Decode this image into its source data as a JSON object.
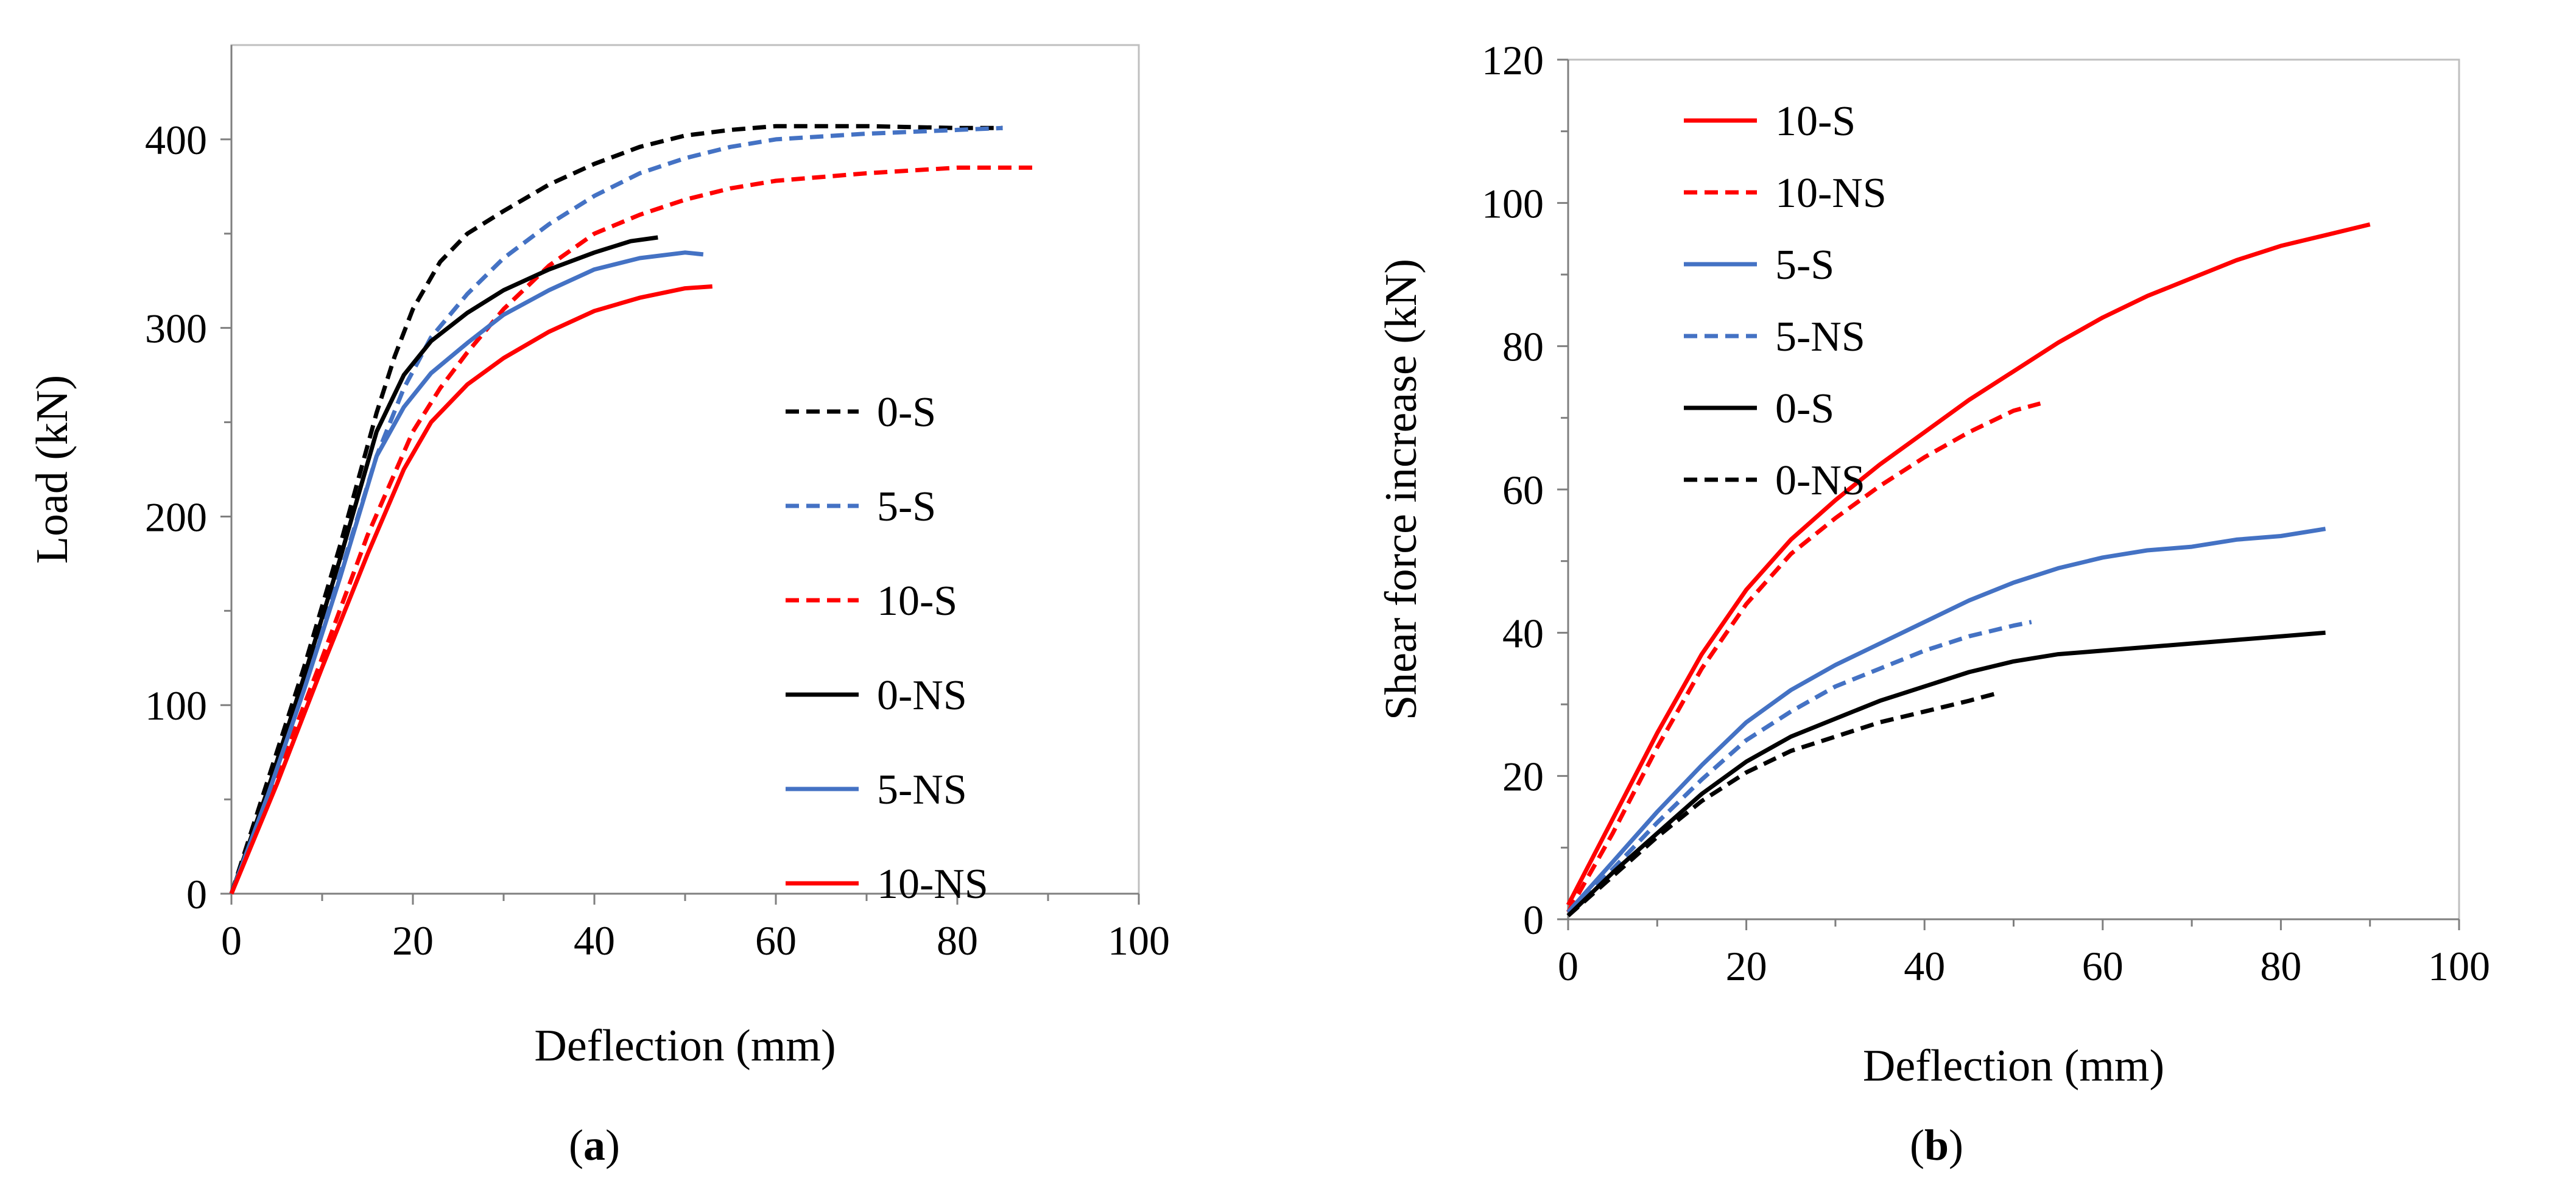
{
  "chart_data": [
    {
      "id": "a",
      "type": "line",
      "caption_letter": "a",
      "xlabel": "Deflection (mm)",
      "ylabel": "Load (kN)",
      "xlim": [
        0,
        100
      ],
      "ylim": [
        0,
        450
      ],
      "xticks": [
        0,
        20,
        40,
        60,
        80,
        100
      ],
      "yticks": [
        0,
        100,
        200,
        300,
        400
      ],
      "grid": false,
      "legend_position": "center-right",
      "series": [
        {
          "name": "0-S",
          "color": "#000000",
          "dash": true,
          "points": [
            [
              0,
              0
            ],
            [
              4,
              60
            ],
            [
              8,
              120
            ],
            [
              12,
              185
            ],
            [
              16,
              255
            ],
            [
              18,
              285
            ],
            [
              20,
              310
            ],
            [
              23,
              335
            ],
            [
              26,
              350
            ],
            [
              30,
              362
            ],
            [
              35,
              376
            ],
            [
              40,
              387
            ],
            [
              45,
              396
            ],
            [
              50,
              402
            ],
            [
              55,
              405
            ],
            [
              60,
              407
            ],
            [
              70,
              407
            ],
            [
              80,
              406
            ],
            [
              85,
              406
            ]
          ]
        },
        {
          "name": "5-S",
          "color": "#4472C4",
          "dash": true,
          "points": [
            [
              0,
              0
            ],
            [
              4,
              55
            ],
            [
              8,
              112
            ],
            [
              12,
              170
            ],
            [
              16,
              232
            ],
            [
              19,
              268
            ],
            [
              22,
              295
            ],
            [
              26,
              318
            ],
            [
              30,
              337
            ],
            [
              35,
              355
            ],
            [
              40,
              370
            ],
            [
              45,
              382
            ],
            [
              50,
              390
            ],
            [
              55,
              396
            ],
            [
              60,
              400
            ],
            [
              70,
              403
            ],
            [
              80,
              405
            ],
            [
              85,
              406
            ]
          ]
        },
        {
          "name": "10-S",
          "color": "#FF0000",
          "dash": true,
          "points": [
            [
              0,
              0
            ],
            [
              5,
              62
            ],
            [
              10,
              125
            ],
            [
              15,
              190
            ],
            [
              20,
              245
            ],
            [
              23,
              268
            ],
            [
              26,
              287
            ],
            [
              30,
              310
            ],
            [
              35,
              333
            ],
            [
              40,
              350
            ],
            [
              45,
              360
            ],
            [
              50,
              368
            ],
            [
              55,
              374
            ],
            [
              60,
              378
            ],
            [
              70,
              382
            ],
            [
              80,
              385
            ],
            [
              89,
              385
            ]
          ]
        },
        {
          "name": "0-NS",
          "color": "#000000",
          "dash": false,
          "points": [
            [
              0,
              0
            ],
            [
              4,
              55
            ],
            [
              8,
              115
            ],
            [
              12,
              178
            ],
            [
              16,
              245
            ],
            [
              19,
              275
            ],
            [
              22,
              293
            ],
            [
              26,
              308
            ],
            [
              30,
              320
            ],
            [
              35,
              331
            ],
            [
              40,
              340
            ],
            [
              44,
              346
            ],
            [
              47,
              348
            ]
          ]
        },
        {
          "name": "5-NS",
          "color": "#4472C4",
          "dash": false,
          "points": [
            [
              0,
              0
            ],
            [
              4,
              52
            ],
            [
              8,
              108
            ],
            [
              12,
              168
            ],
            [
              16,
              232
            ],
            [
              19,
              258
            ],
            [
              22,
              276
            ],
            [
              26,
              292
            ],
            [
              30,
              307
            ],
            [
              35,
              320
            ],
            [
              40,
              331
            ],
            [
              45,
              337
            ],
            [
              50,
              340
            ],
            [
              52,
              339
            ]
          ]
        },
        {
          "name": "10-NS",
          "color": "#FF0000",
          "dash": false,
          "points": [
            [
              0,
              0
            ],
            [
              5,
              58
            ],
            [
              10,
              120
            ],
            [
              15,
              180
            ],
            [
              19,
              225
            ],
            [
              22,
              250
            ],
            [
              26,
              270
            ],
            [
              30,
              284
            ],
            [
              35,
              298
            ],
            [
              40,
              309
            ],
            [
              45,
              316
            ],
            [
              50,
              321
            ],
            [
              53,
              322
            ]
          ]
        }
      ]
    },
    {
      "id": "b",
      "type": "line",
      "caption_letter": "b",
      "xlabel": "Deflection (mm)",
      "ylabel": "Shear force increase (kN)",
      "xlim": [
        0,
        100
      ],
      "ylim": [
        0,
        120
      ],
      "xticks": [
        0,
        20,
        40,
        60,
        80,
        100
      ],
      "yticks": [
        0,
        20,
        40,
        60,
        80,
        100,
        120
      ],
      "grid": false,
      "legend_position": "top-left",
      "series": [
        {
          "name": "10-S",
          "color": "#FF0000",
          "dash": false,
          "points": [
            [
              0,
              2
            ],
            [
              5,
              14
            ],
            [
              10,
              26
            ],
            [
              15,
              37
            ],
            [
              20,
              46
            ],
            [
              25,
              53
            ],
            [
              30,
              58.5
            ],
            [
              35,
              63.5
            ],
            [
              40,
              68
            ],
            [
              45,
              72.5
            ],
            [
              50,
              76.5
            ],
            [
              55,
              80.5
            ],
            [
              60,
              84
            ],
            [
              65,
              87
            ],
            [
              70,
              89.5
            ],
            [
              75,
              92
            ],
            [
              80,
              94
            ],
            [
              85,
              95.5
            ],
            [
              90,
              97
            ]
          ]
        },
        {
          "name": "10-NS",
          "color": "#FF0000",
          "dash": true,
          "points": [
            [
              0,
              1
            ],
            [
              5,
              12
            ],
            [
              10,
              24
            ],
            [
              15,
              35
            ],
            [
              20,
              44
            ],
            [
              25,
              51
            ],
            [
              30,
              56
            ],
            [
              35,
              60.5
            ],
            [
              40,
              64.5
            ],
            [
              45,
              68
            ],
            [
              50,
              71
            ],
            [
              53,
              72
            ]
          ]
        },
        {
          "name": "5-S",
          "color": "#4472C4",
          "dash": false,
          "points": [
            [
              0,
              1
            ],
            [
              5,
              8
            ],
            [
              10,
              15
            ],
            [
              15,
              21.5
            ],
            [
              20,
              27.5
            ],
            [
              25,
              32
            ],
            [
              30,
              35.5
            ],
            [
              35,
              38.5
            ],
            [
              40,
              41.5
            ],
            [
              45,
              44.5
            ],
            [
              50,
              47
            ],
            [
              55,
              49
            ],
            [
              60,
              50.5
            ],
            [
              65,
              51.5
            ],
            [
              70,
              52
            ],
            [
              75,
              53
            ],
            [
              80,
              53.5
            ],
            [
              85,
              54.5
            ]
          ]
        },
        {
          "name": "5-NS",
          "color": "#4472C4",
          "dash": true,
          "points": [
            [
              0,
              0.5
            ],
            [
              5,
              7
            ],
            [
              10,
              13.5
            ],
            [
              15,
              19.5
            ],
            [
              20,
              25
            ],
            [
              25,
              29
            ],
            [
              30,
              32.5
            ],
            [
              35,
              35
            ],
            [
              40,
              37.5
            ],
            [
              45,
              39.5
            ],
            [
              50,
              41
            ],
            [
              52,
              41.5
            ]
          ]
        },
        {
          "name": "0-S",
          "color": "#000000",
          "dash": false,
          "points": [
            [
              0,
              0.5
            ],
            [
              5,
              6.5
            ],
            [
              10,
              12
            ],
            [
              15,
              17.5
            ],
            [
              20,
              22
            ],
            [
              25,
              25.5
            ],
            [
              30,
              28
            ],
            [
              35,
              30.5
            ],
            [
              40,
              32.5
            ],
            [
              45,
              34.5
            ],
            [
              50,
              36
            ],
            [
              55,
              37
            ],
            [
              60,
              37.5
            ],
            [
              65,
              38
            ],
            [
              70,
              38.5
            ],
            [
              75,
              39
            ],
            [
              80,
              39.5
            ],
            [
              85,
              40
            ]
          ]
        },
        {
          "name": "0-NS",
          "color": "#000000",
          "dash": true,
          "points": [
            [
              0,
              0.5
            ],
            [
              5,
              6
            ],
            [
              10,
              11.5
            ],
            [
              15,
              16.5
            ],
            [
              20,
              20.5
            ],
            [
              25,
              23.5
            ],
            [
              30,
              25.5
            ],
            [
              35,
              27.5
            ],
            [
              40,
              29
            ],
            [
              45,
              30.5
            ],
            [
              48,
              31.5
            ]
          ]
        }
      ]
    }
  ]
}
